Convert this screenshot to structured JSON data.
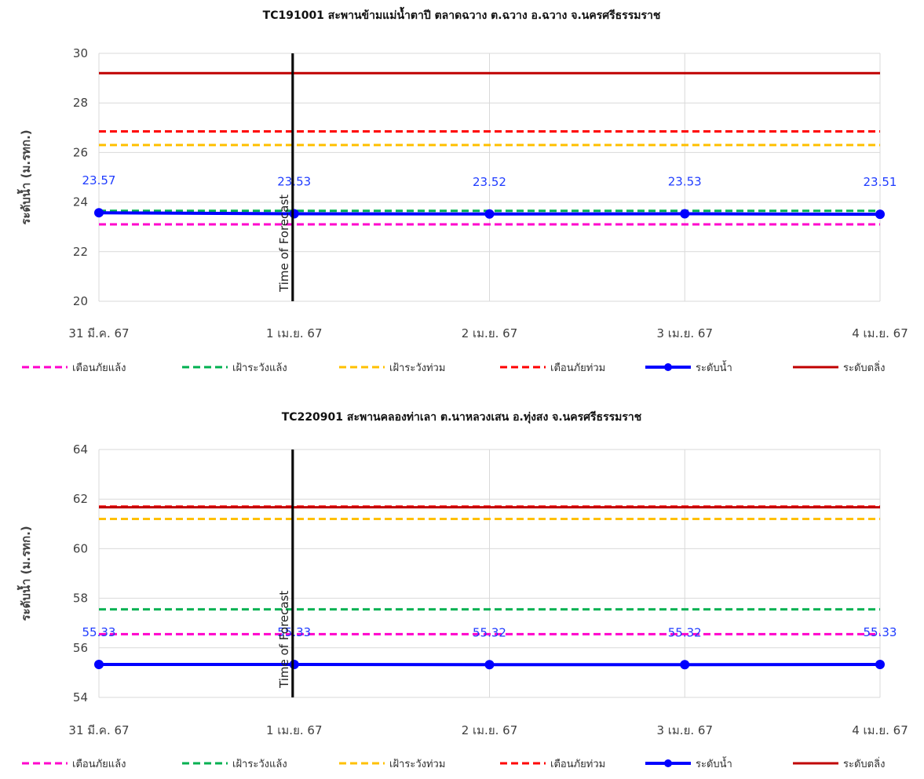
{
  "chart_data": [
    {
      "type": "line",
      "title": "TC191001 สะพานข้ามแม่น้ำตาปี ตลาดฉวาง ต.ฉวาง อ.ฉวาง จ.นครศรีธรรมราช",
      "ylabel": "ระดับน้ำ (ม.รทก.)",
      "xlabel": "",
      "categories": [
        "31 มี.ค. 67",
        "1 เม.ย. 67",
        "2 เม.ย. 67",
        "3 เม.ย. 67",
        "4 เม.ย. 67"
      ],
      "yticks": [
        20,
        22,
        24,
        26,
        28,
        30
      ],
      "ylim": [
        20,
        30
      ],
      "grid": true,
      "legend_position": "bottom",
      "forecast_label": "Time of Forecast",
      "forecast_index": 1,
      "series": [
        {
          "name": "เตือนภัยแล้ง",
          "style": "dashed",
          "color": "#ff00cc",
          "values": [
            23.1,
            23.1,
            23.1,
            23.1,
            23.1
          ]
        },
        {
          "name": "เฝ้าระวังแล้ง",
          "style": "dashed",
          "color": "#00b050",
          "values": [
            23.65,
            23.65,
            23.65,
            23.65,
            23.65
          ]
        },
        {
          "name": "เฝ้าระวังท่วม",
          "style": "dashed",
          "color": "#ffc000",
          "values": [
            26.3,
            26.3,
            26.3,
            26.3,
            26.3
          ]
        },
        {
          "name": "เตือนภัยท่วม",
          "style": "dashed",
          "color": "#ff0000",
          "values": [
            26.85,
            26.85,
            26.85,
            26.85,
            26.85
          ]
        },
        {
          "name": "ระดับน้ำ",
          "style": "marker",
          "color": "#0000ff",
          "values": [
            23.57,
            23.53,
            23.52,
            23.53,
            23.51
          ],
          "labels": [
            "23.57",
            "23.53",
            "23.52",
            "23.53",
            "23.51"
          ]
        },
        {
          "name": "ระดับตลิ่ง",
          "style": "solid",
          "color": "#c00000",
          "values": [
            29.2,
            29.2,
            29.2,
            29.2,
            29.2
          ]
        }
      ]
    },
    {
      "type": "line",
      "title": "TC220901 สะพานคลองท่าเลา ต.นาหลวงเสน อ.ทุ่งสง จ.นครศรีธรรมราช",
      "ylabel": "ระดับน้ำ (ม.รทก.)",
      "xlabel": "",
      "categories": [
        "31 มี.ค. 67",
        "1 เม.ย. 67",
        "2 เม.ย. 67",
        "3 เม.ย. 67",
        "4 เม.ย. 67"
      ],
      "yticks": [
        54,
        56,
        58,
        60,
        62,
        64
      ],
      "ylim": [
        54,
        64
      ],
      "grid": true,
      "legend_position": "bottom",
      "forecast_label": "Time of Forecast",
      "forecast_index": 1,
      "series": [
        {
          "name": "เตือนภัยแล้ง",
          "style": "dashed",
          "color": "#ff00cc",
          "values": [
            56.55,
            56.55,
            56.55,
            56.55,
            56.55
          ]
        },
        {
          "name": "เฝ้าระวังแล้ง",
          "style": "dashed",
          "color": "#00b050",
          "values": [
            57.55,
            57.55,
            57.55,
            57.55,
            57.55
          ]
        },
        {
          "name": "เฝ้าระวังท่วม",
          "style": "dashed",
          "color": "#ffc000",
          "values": [
            61.2,
            61.2,
            61.2,
            61.2,
            61.2
          ]
        },
        {
          "name": "เตือนภัยท่วม",
          "style": "dashed",
          "color": "#ff0000",
          "values": [
            61.7,
            61.7,
            61.7,
            61.7,
            61.7
          ]
        },
        {
          "name": "ระดับน้ำ",
          "style": "marker",
          "color": "#0000ff",
          "values": [
            55.33,
            55.33,
            55.32,
            55.32,
            55.33
          ],
          "labels": [
            "55.33",
            "55.33",
            "55.32",
            "55.32",
            "55.33"
          ]
        },
        {
          "name": "ระดับตลิ่ง",
          "style": "solid",
          "color": "#c00000",
          "values": [
            61.67,
            61.67,
            61.67,
            61.67,
            61.67
          ]
        }
      ]
    }
  ]
}
